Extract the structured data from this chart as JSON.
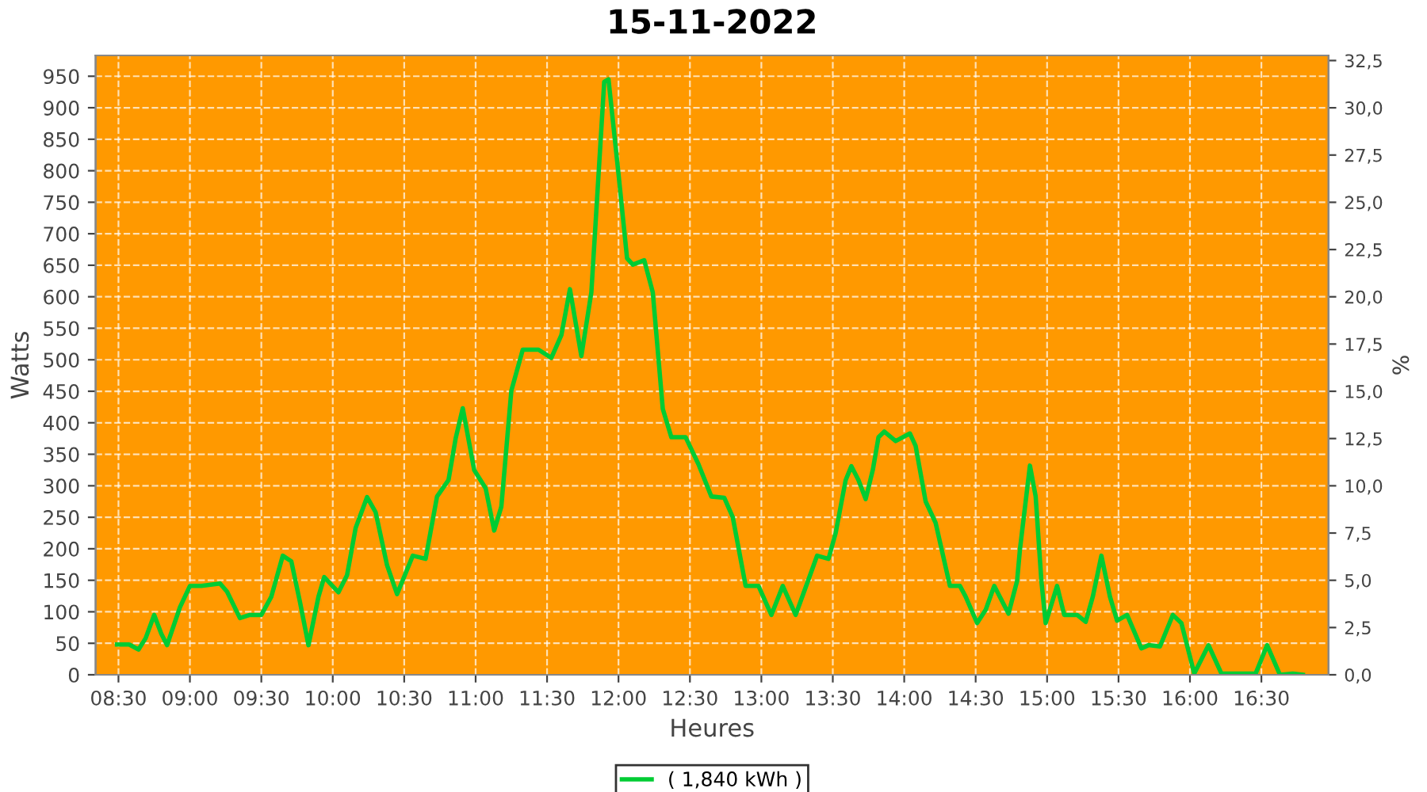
{
  "chart_data": {
    "type": "line",
    "title": "15-11-2022",
    "xlabel": "Heures",
    "ylabel": "Watts",
    "y2label": "%",
    "xlim": [
      8.34,
      16.97
    ],
    "ylim": [
      0,
      983
    ],
    "y2lim": [
      0,
      32.77
    ],
    "xticks": [
      {
        "value": 8.5,
        "label": "08:30"
      },
      {
        "value": 9.0,
        "label": "09:00"
      },
      {
        "value": 9.5,
        "label": "09:30"
      },
      {
        "value": 10.0,
        "label": "10:00"
      },
      {
        "value": 10.5,
        "label": "10:30"
      },
      {
        "value": 11.0,
        "label": "11:00"
      },
      {
        "value": 11.5,
        "label": "11:30"
      },
      {
        "value": 12.0,
        "label": "12:00"
      },
      {
        "value": 12.5,
        "label": "12:30"
      },
      {
        "value": 13.0,
        "label": "13:00"
      },
      {
        "value": 13.5,
        "label": "13:30"
      },
      {
        "value": 14.0,
        "label": "14:00"
      },
      {
        "value": 14.5,
        "label": "14:30"
      },
      {
        "value": 15.0,
        "label": "15:00"
      },
      {
        "value": 15.5,
        "label": "15:30"
      },
      {
        "value": 16.0,
        "label": "16:00"
      },
      {
        "value": 16.5,
        "label": "16:30"
      }
    ],
    "yticks": [
      0,
      50,
      100,
      150,
      200,
      250,
      300,
      350,
      400,
      450,
      500,
      550,
      600,
      650,
      700,
      750,
      800,
      850,
      900,
      950
    ],
    "y2ticks": [
      {
        "value": 0,
        "label": "0,0"
      },
      {
        "value": 2.5,
        "label": "2,5"
      },
      {
        "value": 5,
        "label": "5,0"
      },
      {
        "value": 7.5,
        "label": "7,5"
      },
      {
        "value": 10,
        "label": "10,0"
      },
      {
        "value": 12.5,
        "label": "12,5"
      },
      {
        "value": 15,
        "label": "15,0"
      },
      {
        "value": 17.5,
        "label": "17,5"
      },
      {
        "value": 20,
        "label": "20,0"
      },
      {
        "value": 22.5,
        "label": "22,5"
      },
      {
        "value": 25,
        "label": "25,0"
      },
      {
        "value": 27.5,
        "label": "27,5"
      },
      {
        "value": 30,
        "label": "30,0"
      },
      {
        "value": 32.5,
        "label": "32,5"
      }
    ],
    "grid": true,
    "legend": "bottom",
    "line_style": "solid",
    "marker": "none",
    "series": [
      {
        "name": "( 1,840 kWh )",
        "color": "#00cc33",
        "x": [
          8.49,
          8.575,
          8.64,
          8.69,
          8.75,
          8.8,
          8.84,
          8.93,
          9.0,
          9.08,
          9.21,
          9.26,
          9.35,
          9.42,
          9.5,
          9.57,
          9.65,
          9.71,
          9.77,
          9.83,
          9.9,
          9.94,
          10.04,
          10.1,
          10.16,
          10.24,
          10.3,
          10.38,
          10.45,
          10.56,
          10.65,
          10.73,
          10.81,
          10.86,
          10.91,
          10.99,
          11.07,
          11.13,
          11.18,
          11.25,
          11.33,
          11.44,
          11.53,
          11.6,
          11.66,
          11.74,
          11.81,
          11.9,
          11.93,
          12.0,
          12.06,
          12.1,
          12.18,
          12.24,
          12.31,
          12.37,
          12.47,
          12.56,
          12.65,
          12.74,
          12.8,
          12.89,
          12.98,
          13.07,
          13.15,
          13.24,
          13.36,
          13.39,
          13.47,
          13.52,
          13.59,
          13.63,
          13.68,
          13.73,
          13.78,
          13.82,
          13.86,
          13.94,
          14.04,
          14.08,
          14.15,
          14.22,
          14.27,
          14.32,
          14.39,
          14.43,
          14.51,
          14.57,
          14.63,
          14.73,
          14.79,
          14.81,
          14.88,
          14.92,
          14.96,
          14.99,
          15.07,
          15.12,
          15.21,
          15.27,
          15.32,
          15.38,
          15.44,
          15.49,
          15.56,
          15.66,
          15.71,
          15.79,
          15.88,
          15.94,
          16.03,
          16.13,
          16.22,
          16.33,
          16.46,
          16.54,
          16.63,
          16.72,
          16.79
        ],
        "values": [
          48,
          48,
          40,
          58,
          95,
          65,
          47,
          107,
          141,
          141,
          145,
          132,
          90,
          95,
          95,
          124,
          189,
          180,
          116,
          47,
          124,
          155,
          131,
          158,
          233,
          282,
          258,
          174,
          128,
          189,
          184,
          283,
          309,
          375,
          423,
          325,
          296,
          229,
          267,
          451,
          516,
          516,
          503,
          539,
          612,
          506,
          607,
          941,
          945,
          795,
          661,
          651,
          658,
          607,
          422,
          377,
          377,
          334,
          283,
          281,
          250,
          141,
          141,
          95,
          141,
          95,
          170,
          189,
          184,
          225,
          309,
          331,
          309,
          279,
          325,
          377,
          386,
          371,
          383,
          363,
          275,
          241,
          191,
          141,
          141,
          124,
          82,
          103,
          141,
          97,
          149,
          199,
          332,
          283,
          149,
          82,
          141,
          95,
          95,
          84,
          124,
          189,
          124,
          86,
          95,
          42,
          47,
          45,
          95,
          82,
          2,
          47,
          2,
          2,
          2,
          47,
          0,
          2,
          0
        ]
      }
    ]
  }
}
